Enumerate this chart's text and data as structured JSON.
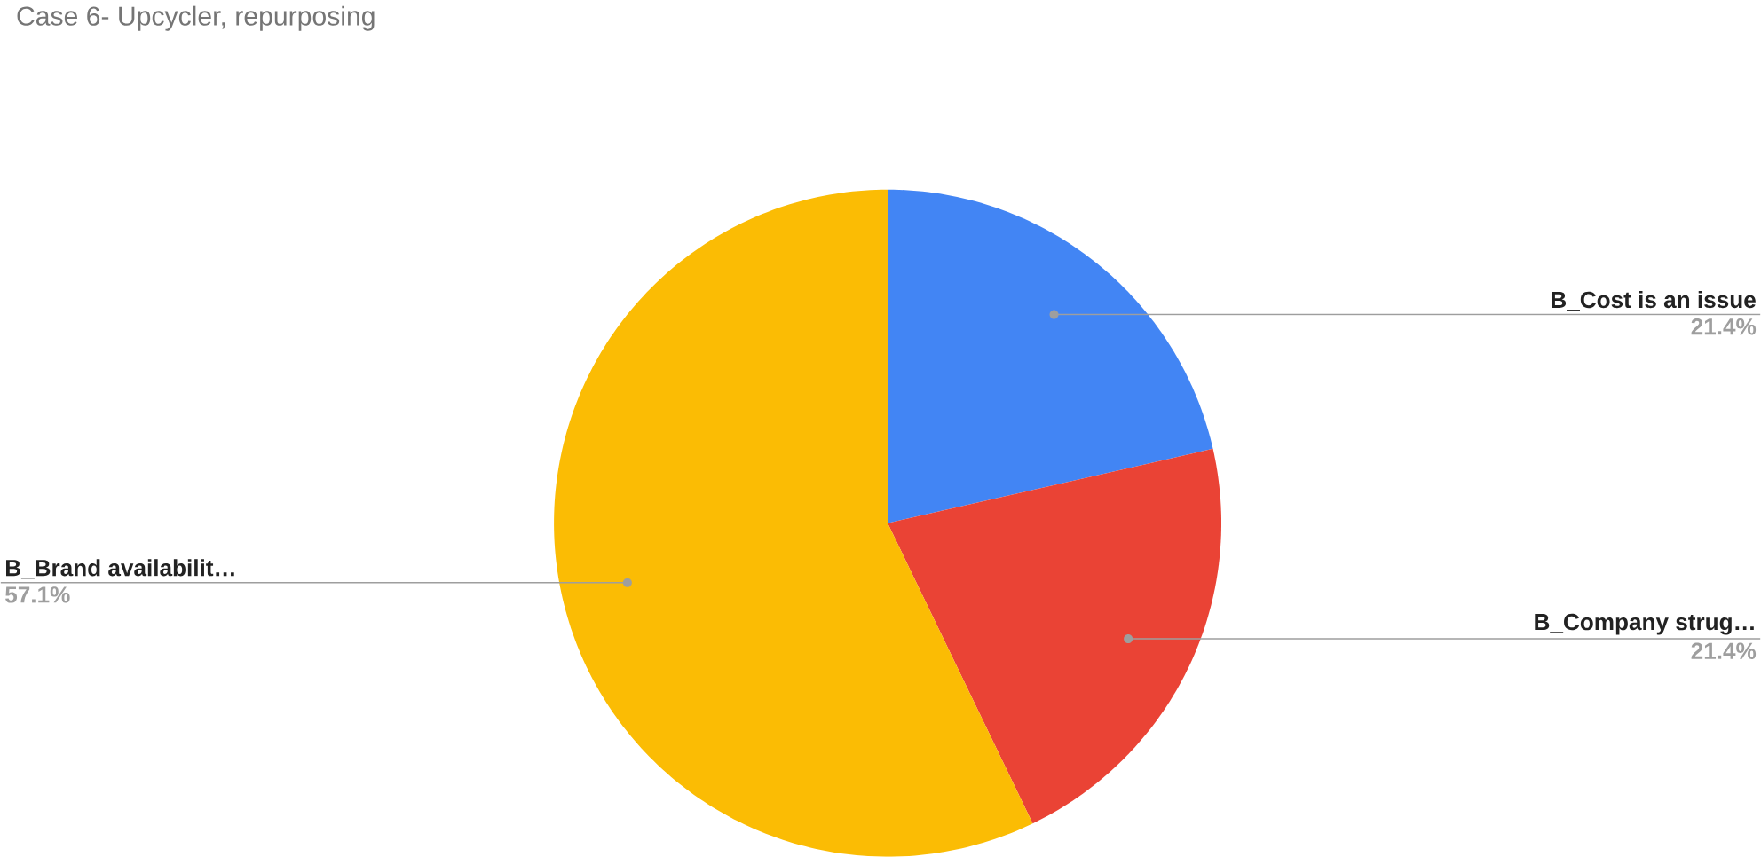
{
  "chart_data": {
    "type": "pie",
    "title": "Case 6- Upcycler, repurposing",
    "categories": [
      "B_Cost is an issue",
      "B_Company strug…",
      "B_Brand availabilit…"
    ],
    "values": [
      21.4,
      21.4,
      57.1
    ],
    "value_labels": [
      "21.4%",
      "21.4%",
      "57.1%"
    ],
    "colors": [
      "#4285f4",
      "#ea4335",
      "#fbbc04"
    ]
  }
}
